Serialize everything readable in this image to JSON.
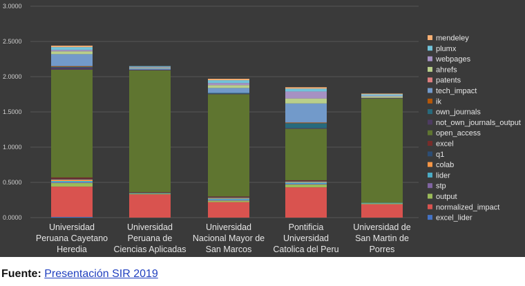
{
  "chart_data": {
    "type": "bar",
    "stacked": true,
    "categories": [
      [
        "Universidad",
        "Peruana Cayetano",
        "Heredia"
      ],
      [
        "Universidad",
        "Peruana de",
        "Ciencias Aplicadas"
      ],
      [
        "Universidad",
        "Nacional Mayor de",
        "San Marcos"
      ],
      [
        "Pontificia",
        "Universidad",
        "Catolica del Peru"
      ],
      [
        "Universidad de",
        "San Martin de",
        "Porres"
      ]
    ],
    "ylim": [
      0,
      3
    ],
    "yticks": [
      "0.0000",
      "0.5000",
      "1.0000",
      "1.5000",
      "2.0000",
      "2.5000",
      "3.0000"
    ],
    "grid": true,
    "legend_position": "right",
    "background": "#3a3a3a",
    "series": [
      {
        "name": "excel_lider",
        "color": "#4472c4",
        "values": [
          0.01,
          0.0,
          0.0,
          0.0,
          0.0
        ]
      },
      {
        "name": "normalized_impact",
        "color": "#d9534f",
        "values": [
          0.43,
          0.33,
          0.22,
          0.43,
          0.19
        ]
      },
      {
        "name": "output",
        "color": "#9bbb59",
        "values": [
          0.05,
          0.01,
          0.02,
          0.04,
          0.01
        ]
      },
      {
        "name": "stp",
        "color": "#8064a2",
        "values": [
          0.01,
          0.0,
          0.01,
          0.01,
          0.0
        ]
      },
      {
        "name": "lider",
        "color": "#4bacc6",
        "values": [
          0.02,
          0.01,
          0.02,
          0.02,
          0.01
        ]
      },
      {
        "name": "colab",
        "color": "#f79646",
        "values": [
          0.02,
          0.0,
          0.01,
          0.01,
          0.0
        ]
      },
      {
        "name": "q1",
        "color": "#2c4d75",
        "values": [
          0.01,
          0.0,
          0.01,
          0.01,
          0.0
        ]
      },
      {
        "name": "excel",
        "color": "#772c2a",
        "values": [
          0.02,
          0.01,
          0.01,
          0.01,
          0.0
        ]
      },
      {
        "name": "open_access",
        "color": "#5f7530",
        "values": [
          1.53,
          1.73,
          1.45,
          0.73,
          1.48
        ]
      },
      {
        "name": "not_own_journals_output",
        "color": "#4d3b62",
        "values": [
          0.03,
          0.01,
          0.01,
          0.01,
          0.01
        ]
      },
      {
        "name": "own_journals",
        "color": "#276a7c",
        "values": [
          0.01,
          0.0,
          0.01,
          0.07,
          0.0
        ]
      },
      {
        "name": "ik",
        "color": "#b65708",
        "values": [
          0.01,
          0.0,
          0.0,
          0.01,
          0.0
        ]
      },
      {
        "name": "tech_impact",
        "color": "#729aca",
        "values": [
          0.17,
          0.02,
          0.07,
          0.27,
          0.0
        ]
      },
      {
        "name": "patents",
        "color": "#dd7e7e",
        "values": [
          0.0,
          0.0,
          0.0,
          0.0,
          0.0
        ]
      },
      {
        "name": "ahrefs",
        "color": "#b9cf8a",
        "values": [
          0.04,
          0.01,
          0.04,
          0.07,
          0.02
        ]
      },
      {
        "name": "webpages",
        "color": "#a691c3",
        "values": [
          0.02,
          0.01,
          0.03,
          0.1,
          0.01
        ]
      },
      {
        "name": "plumx",
        "color": "#71c3da",
        "values": [
          0.04,
          0.01,
          0.04,
          0.04,
          0.02
        ]
      },
      {
        "name": "mendeley",
        "color": "#f9b074",
        "values": [
          0.02,
          0.0,
          0.02,
          0.02,
          0.01
        ]
      }
    ]
  },
  "source": {
    "label": "Fuente:",
    "link_text": "Presentación SIR 2019"
  }
}
